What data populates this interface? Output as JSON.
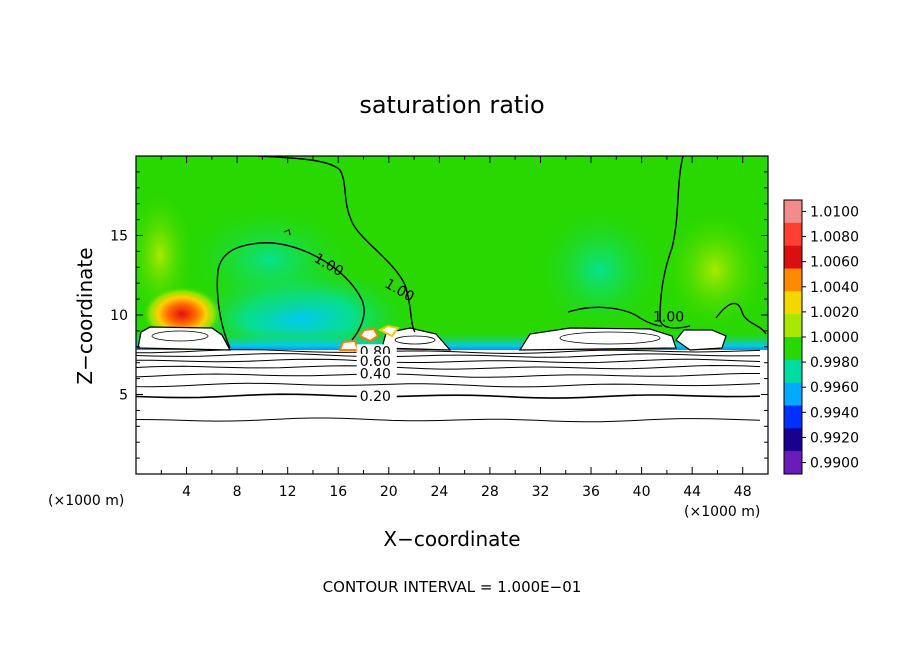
{
  "chart_data": {
    "type": "heatmap",
    "title": "saturation ratio",
    "xlabel": "X−coordinate",
    "ylabel": "Z−coordinate",
    "x_unit": "(×1000 m)",
    "z_unit": "(×1000 m)",
    "xlim": [
      0,
      50
    ],
    "ylim": [
      0,
      20
    ],
    "x_ticks": [
      4,
      8,
      12,
      16,
      20,
      24,
      28,
      32,
      36,
      40,
      44,
      48
    ],
    "y_ticks": [
      5,
      10,
      15
    ],
    "footer": "CONTOUR INTERVAL = 1.000E−01",
    "colorbar": {
      "position": "right",
      "labels": [
        "1.0100",
        "1.0080",
        "1.0060",
        "1.0040",
        "1.0020",
        "1.0000",
        "0.9980",
        "0.9960",
        "0.9940",
        "0.9920",
        "0.9900"
      ],
      "colors": [
        "#f08c8c",
        "#ff4030",
        "#d81010",
        "#ff8a00",
        "#f2d800",
        "#a8e800",
        "#28d800",
        "#00dca0",
        "#00aaff",
        "#0030ff",
        "#1a0090",
        "#6a1cb8"
      ]
    },
    "contour_labels": [
      {
        "text": "1.00",
        "x": 14.0,
        "y": 13.4
      },
      {
        "text": "1.00",
        "x": 19.6,
        "y": 11.8
      },
      {
        "text": "1.00",
        "x": 40.9,
        "y": 9.6
      },
      {
        "text": "0.80",
        "x": 17.7,
        "y": 7.4
      },
      {
        "text": "0.60",
        "x": 17.7,
        "y": 6.8
      },
      {
        "text": "0.40",
        "x": 17.7,
        "y": 6.0
      },
      {
        "text": "0.20",
        "x": 17.7,
        "y": 4.6
      }
    ],
    "contour_levels_z": [
      3.4,
      4.9,
      5.6,
      6.2,
      6.7,
      7.1,
      7.45,
      7.7
    ]
  }
}
